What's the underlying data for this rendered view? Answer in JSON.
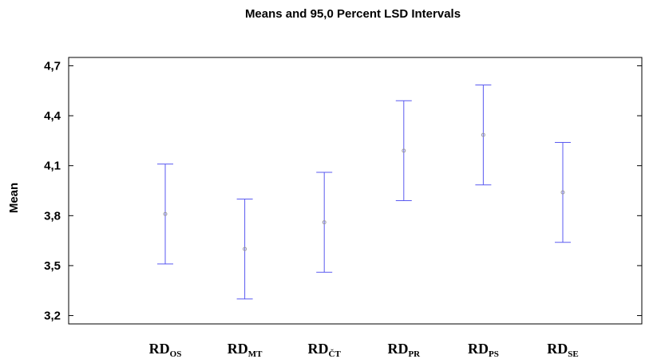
{
  "chart_data": {
    "type": "interval",
    "title": "Means and 95,0 Percent LSD Intervals",
    "ylabel": "Mean",
    "xlabel": "",
    "ylim": [
      3.15,
      4.75
    ],
    "yticks": [
      "3,2",
      "3,5",
      "3,8",
      "4,1",
      "4,4",
      "4,7"
    ],
    "ytick_values": [
      3.2,
      3.5,
      3.8,
      4.1,
      4.4,
      4.7
    ],
    "categories": [
      {
        "main": "RD",
        "sub": "OS"
      },
      {
        "main": "RD",
        "sub": "MT"
      },
      {
        "main": "RD",
        "sub": "ČT"
      },
      {
        "main": "RD",
        "sub": "PR"
      },
      {
        "main": "RD",
        "sub": "PS"
      },
      {
        "main": "RD",
        "sub": "SE"
      }
    ],
    "means": [
      3.81,
      3.6,
      3.76,
      4.19,
      4.285,
      3.94
    ],
    "lower": [
      3.51,
      3.3,
      3.46,
      3.89,
      3.985,
      3.64
    ],
    "upper": [
      4.11,
      3.9,
      4.06,
      4.49,
      4.585,
      4.24
    ],
    "interval_color": "#5a5af0",
    "mean_marker_color": "#9a9aa0",
    "axis_color": "#000000",
    "grid": false
  }
}
